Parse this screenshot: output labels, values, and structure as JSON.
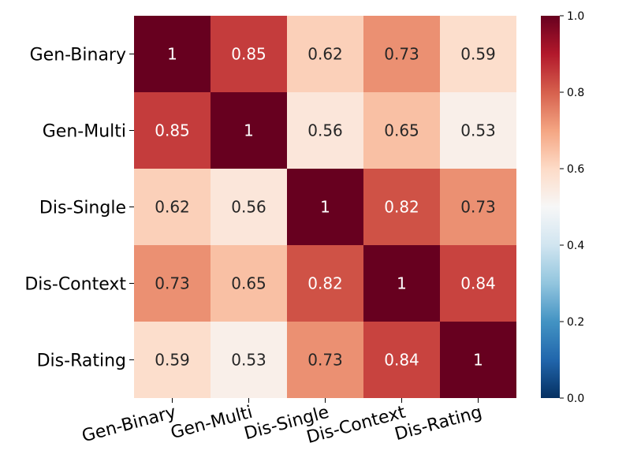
{
  "chart_data": {
    "type": "heatmap",
    "rows": [
      "Gen-Binary",
      "Gen-Multi",
      "Dis-Single",
      "Dis-Context",
      "Dis-Rating"
    ],
    "columns": [
      "Gen-Binary",
      "Gen-Multi",
      "Dis-Single",
      "Dis-Context",
      "Dis-Rating"
    ],
    "values": [
      [
        1,
        0.85,
        0.62,
        0.73,
        0.59
      ],
      [
        0.85,
        1,
        0.56,
        0.65,
        0.53
      ],
      [
        0.62,
        0.56,
        1,
        0.82,
        0.73
      ],
      [
        0.73,
        0.65,
        0.82,
        1,
        0.84
      ],
      [
        0.59,
        0.53,
        0.73,
        0.84,
        1
      ]
    ],
    "cell_labels": [
      [
        "1",
        "0.85",
        "0.62",
        "0.73",
        "0.59"
      ],
      [
        "0.85",
        "1",
        "0.56",
        "0.65",
        "0.53"
      ],
      [
        "0.62",
        "0.56",
        "1",
        "0.82",
        "0.73"
      ],
      [
        "0.73",
        "0.65",
        "0.82",
        "1",
        "0.84"
      ],
      [
        "0.59",
        "0.53",
        "0.73",
        "0.84",
        "1"
      ]
    ],
    "colormap": "RdBu_r",
    "vmin": 0.0,
    "vmax": 1.0,
    "colorbar": {
      "ticks": [
        0.0,
        0.2,
        0.4,
        0.6,
        0.8,
        1.0
      ],
      "tick_labels": [
        "0.0",
        "0.2",
        "0.4",
        "0.6",
        "0.8",
        "1.0"
      ]
    },
    "title": "",
    "xlabel": "",
    "ylabel": ""
  }
}
